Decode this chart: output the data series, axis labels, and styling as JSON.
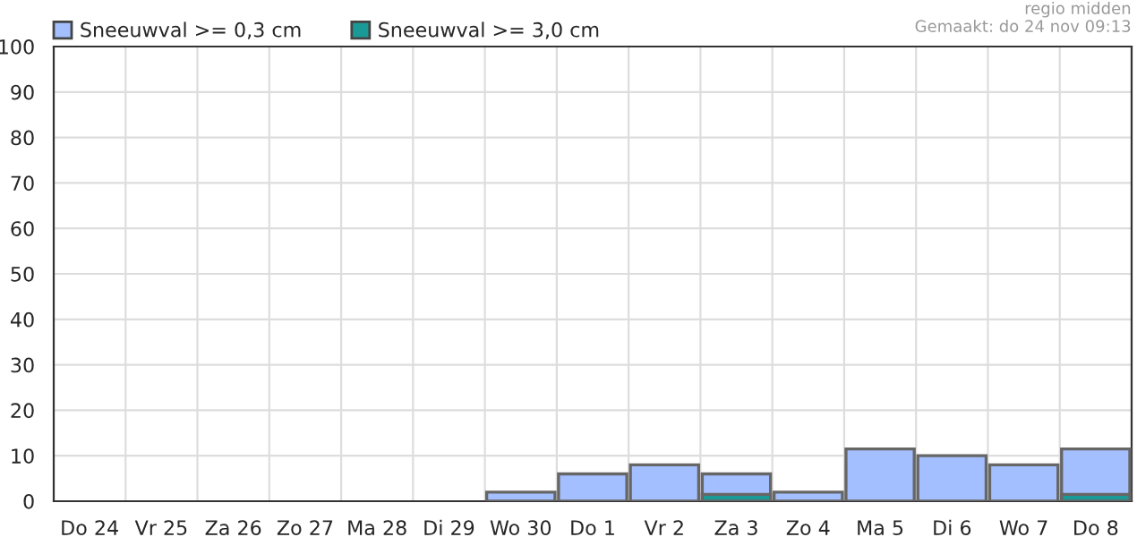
{
  "chart_data": {
    "type": "bar",
    "categories": [
      "Do 24",
      "Vr 25",
      "Za 26",
      "Zo 27",
      "Ma 28",
      "Di 29",
      "Wo 30",
      "Do 1",
      "Vr 2",
      "Za 3",
      "Zo 4",
      "Ma 5",
      "Di 6",
      "Wo 7",
      "Do 8"
    ],
    "series": [
      {
        "name": "Sneeuwval >= 0,3 cm",
        "color": "#a4bfff",
        "values": [
          null,
          null,
          null,
          null,
          null,
          null,
          2,
          6,
          8,
          6,
          2,
          11.5,
          10,
          8,
          11.5
        ]
      },
      {
        "name": "Sneeuwval >= 3,0 cm",
        "color": "#1a9a96",
        "values": [
          null,
          null,
          null,
          null,
          null,
          null,
          null,
          null,
          null,
          1.5,
          null,
          null,
          null,
          null,
          1.5
        ]
      }
    ],
    "ylim": [
      0,
      100
    ],
    "yticks": [
      0,
      10,
      20,
      30,
      40,
      50,
      60,
      70,
      80,
      90,
      100
    ],
    "grid": true,
    "legend": "top left",
    "annotations": [
      "regio midden",
      "Gemaakt: do 24 nov 09:13"
    ]
  }
}
